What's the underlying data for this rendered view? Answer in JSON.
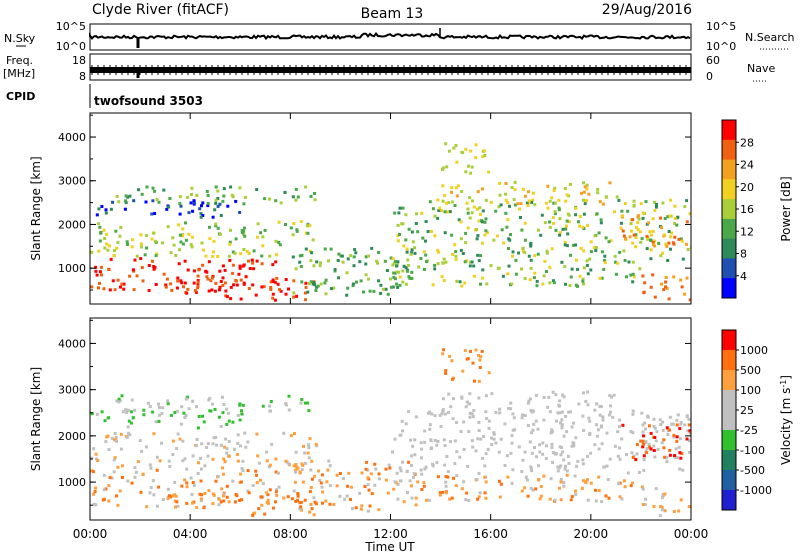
{
  "header": {
    "title": "Clyde River (fitACF)",
    "beam": "Beam 13",
    "date": "29/Aug/2016"
  },
  "left_labels": {
    "nsky": "N.Sky",
    "freq_line1": "Freq.",
    "freq_line2": "[MHz]",
    "cpid": "CPID"
  },
  "right_labels": {
    "nsearch": "N.Search",
    "nave": "Nave"
  },
  "cpid_value": "twofsound 3503",
  "panels": {
    "noise_left_ticks": [
      "10^5",
      "10^0"
    ],
    "noise_right_ticks": [
      "10^5",
      "10^0"
    ],
    "freq_left_ticks": [
      "18",
      "8"
    ],
    "freq_right_ticks": [
      "60",
      "0"
    ]
  },
  "chart_data": [
    {
      "type": "heatmap",
      "name": "power-panel",
      "ylabel": "Slant Range [km]",
      "ylim": [
        180,
        4550
      ],
      "yticks": [
        "4000",
        "3000",
        "2000",
        "1000"
      ],
      "xlabel": "Time UT",
      "xlim": [
        0,
        24
      ],
      "xticks": [
        "00:00",
        "04:00",
        "08:00",
        "12:00",
        "16:00",
        "20:00",
        "00:00"
      ],
      "colorbar": {
        "label": "Power [dB]",
        "range": [
          0,
          30
        ],
        "ticks": [
          "28",
          "24",
          "20",
          "16",
          "12",
          "8",
          "4"
        ],
        "colors": [
          "#0000ff",
          "#1f4fb0",
          "#2f8a5a",
          "#4aa84a",
          "#a8cf3a",
          "#f0d020",
          "#f4a020",
          "#f06010",
          "#ff0000"
        ]
      }
    },
    {
      "type": "heatmap",
      "name": "velocity-panel",
      "ylabel": "Slant Range [km]",
      "ylim": [
        180,
        4550
      ],
      "yticks": [
        "4000",
        "3000",
        "2000",
        "1000"
      ],
      "xlabel": "Time UT",
      "xlim": [
        0,
        24
      ],
      "xticks": [
        "00:00",
        "04:00",
        "08:00",
        "12:00",
        "16:00",
        "20:00",
        "00:00"
      ],
      "colorbar": {
        "label": "Velocity [m s",
        "label_sup": "-1",
        "label_end": "]",
        "ticks": [
          "1000",
          "500",
          "100",
          "25",
          "-25",
          "-100",
          "-500",
          "-1000"
        ],
        "colors": [
          "#2020d0",
          "#2060a0",
          "#208060",
          "#30c030",
          "#c0c0c0",
          "#c0c0c0",
          "#ffa040",
          "#ff7010",
          "#ff0000"
        ]
      }
    }
  ]
}
